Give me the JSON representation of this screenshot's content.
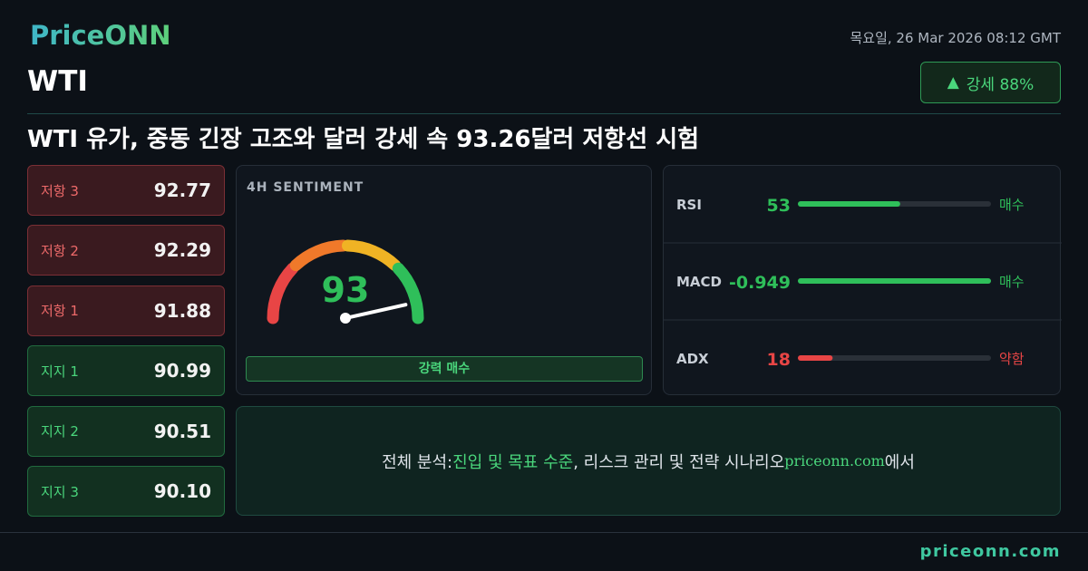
{
  "header": {
    "brand": "PriceONN",
    "datetime": "목요일, 26 Mar 2026 08:12 GMT",
    "symbol": "WTI",
    "badge": "강세 88%"
  },
  "headline": "WTI 유가, 중동 긴장 고조와 달러 강세 속 93.26달러 저항선 시험",
  "levels": [
    {
      "label": "저항 3",
      "value": "92.77",
      "kind": "resistance"
    },
    {
      "label": "저항 2",
      "value": "92.29",
      "kind": "resistance"
    },
    {
      "label": "저항 1",
      "value": "91.88",
      "kind": "resistance"
    },
    {
      "label": "지지 1",
      "value": "90.99",
      "kind": "support"
    },
    {
      "label": "지지 2",
      "value": "90.51",
      "kind": "support"
    },
    {
      "label": "지지 3",
      "value": "90.10",
      "kind": "support"
    }
  ],
  "sentiment": {
    "title": "4H SENTIMENT",
    "value": 93,
    "lim": [
      0,
      100
    ],
    "label": "강력 매수"
  },
  "indicators": [
    {
      "name": "RSI",
      "value": 53,
      "signal": "매수",
      "lim": [
        0,
        100
      ]
    },
    {
      "name": "MACD",
      "value": -0.949,
      "signal": "매수"
    },
    {
      "name": "ADX",
      "value": 18,
      "signal": "약함",
      "lim": [
        0,
        100
      ]
    }
  ],
  "analysis": [
    "전체 분석: ",
    "진입 및 목표 수준",
    ", 리스크 관리 및 전략 시나리오 ",
    "priceonn.com",
    "에서"
  ],
  "footer": "priceonn.com"
}
